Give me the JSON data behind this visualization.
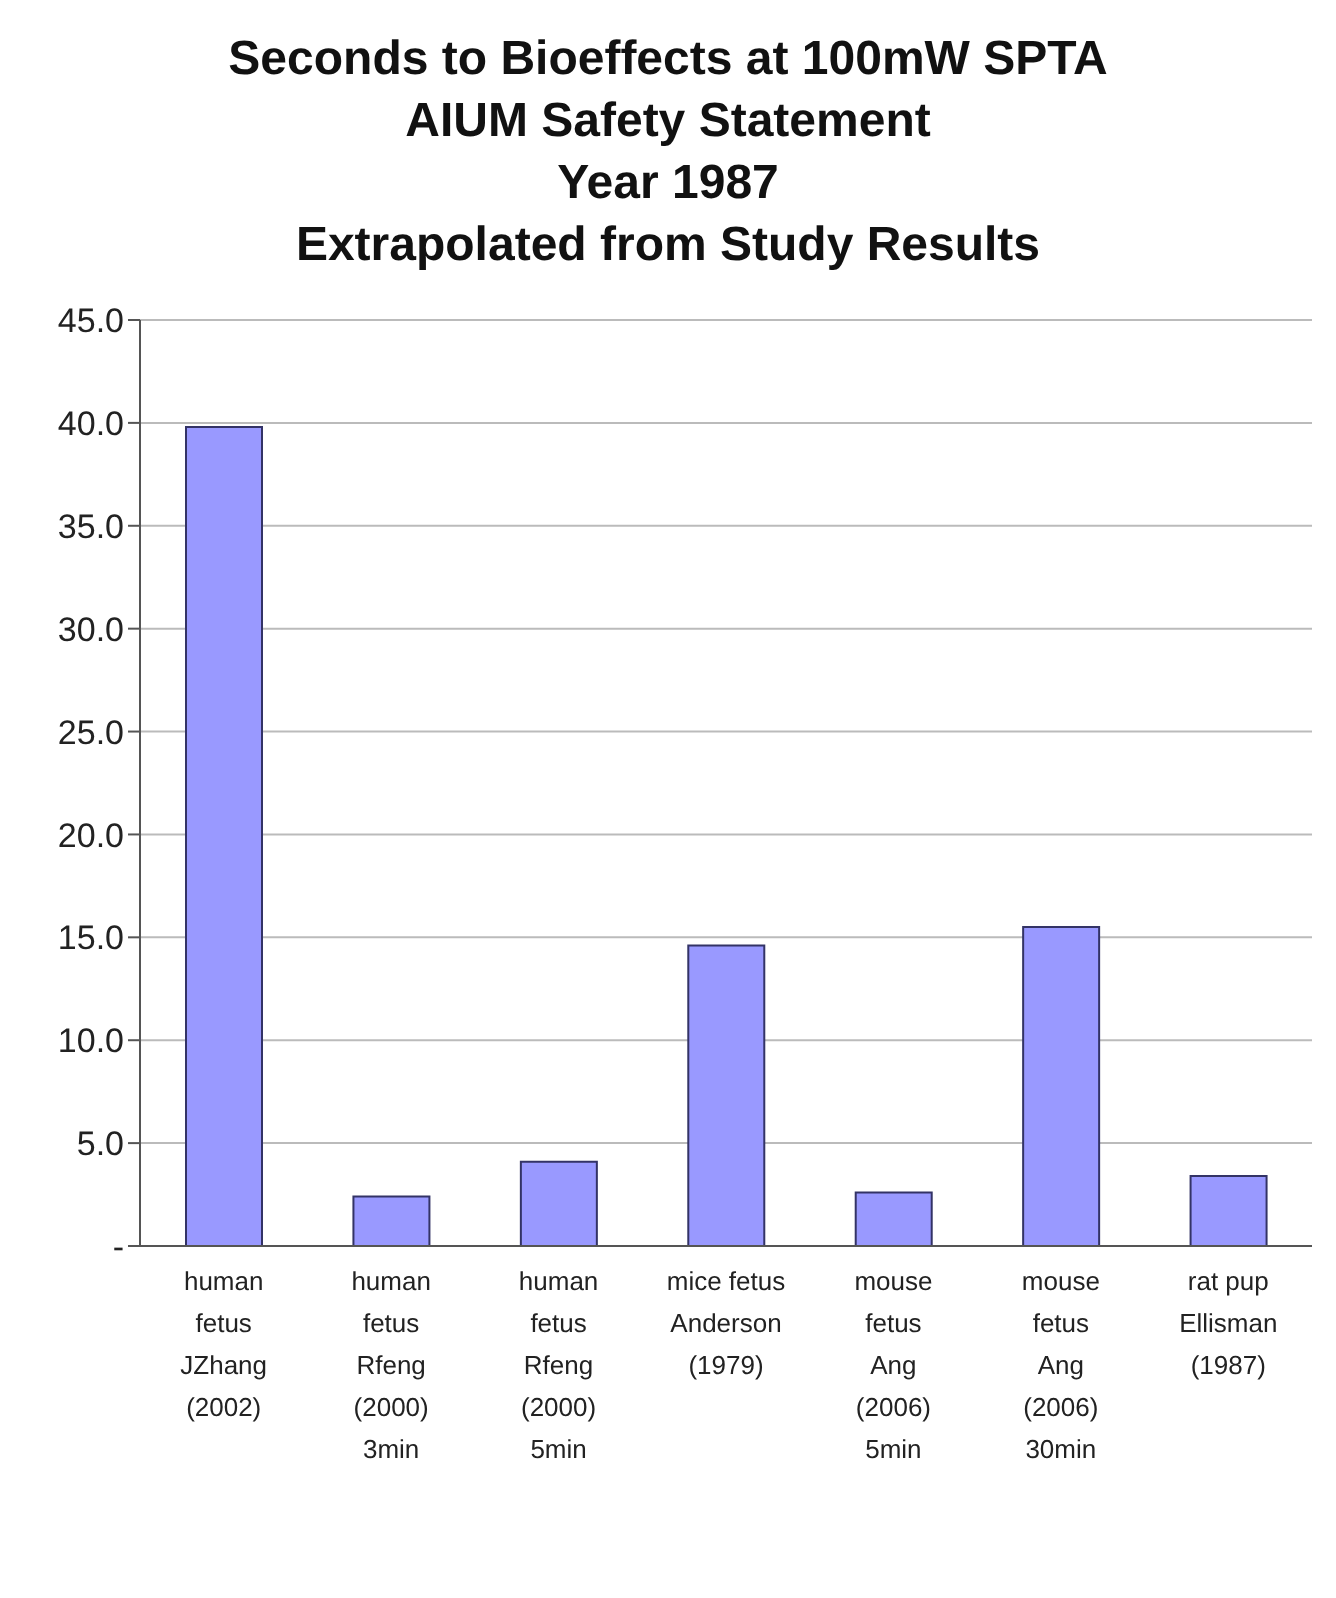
{
  "chart_data": {
    "type": "bar",
    "title": "Seconds to Bioeffects at 100mW SPTA\nAIUM Safety Statement\nYear 1987\nExtrapolated from Study Results",
    "categories": [
      "human\nfetus\n\nJZhang\n(2002)",
      "human\nfetus\n\nRfeng\n(2000)\n3min",
      "human\nfetus\n\nRfeng\n(2000)\n5min",
      "mice fetus\n\n\nAnderson\n(1979)",
      "mouse\nfetus\n\nAng\n(2006)\n5min",
      "mouse\nfetus\n\nAng\n(2006)\n30min",
      "rat pup\n\n\nEllisman\n(1987)"
    ],
    "values": [
      39.8,
      2.4,
      4.1,
      14.6,
      2.6,
      15.5,
      3.4
    ],
    "color": "#9999ff",
    "ylim": [
      0,
      45
    ],
    "yticks": [
      {
        "value": 0,
        "label": "-"
      },
      {
        "value": 5,
        "label": "5.0"
      },
      {
        "value": 10,
        "label": "10.0"
      },
      {
        "value": 15,
        "label": "15.0"
      },
      {
        "value": 20,
        "label": "20.0"
      },
      {
        "value": 25,
        "label": "25.0"
      },
      {
        "value": 30,
        "label": "30.0"
      },
      {
        "value": 35,
        "label": "35.0"
      },
      {
        "value": 40,
        "label": "40.0"
      },
      {
        "value": 45,
        "label": "45.0"
      }
    ],
    "grid": "y",
    "legend": false
  }
}
